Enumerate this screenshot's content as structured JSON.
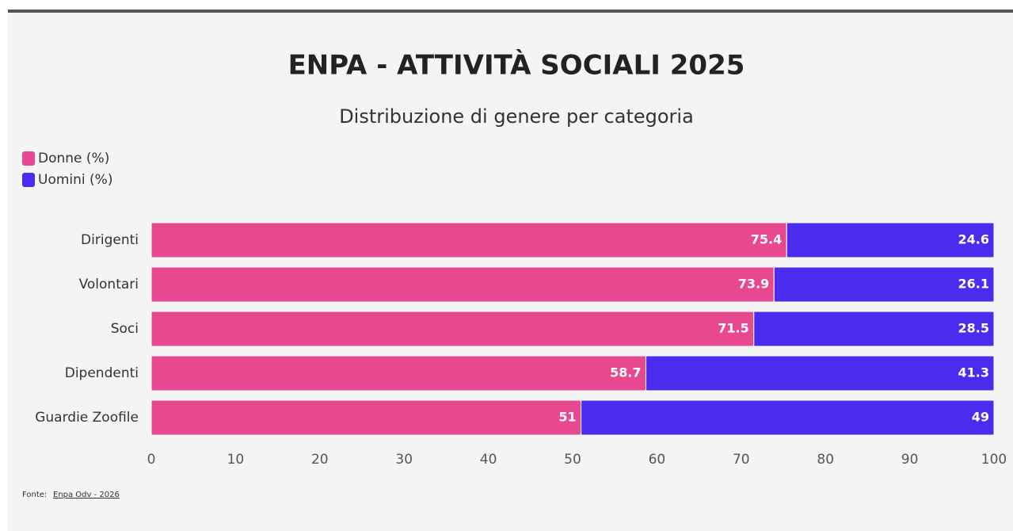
{
  "chart_data": {
    "type": "bar",
    "orientation": "horizontal",
    "stacked": true,
    "title": "ENPA - ATTIVITÀ SOCIALI 2025",
    "subtitle": "Distribuzione di genere per categoria",
    "categories": [
      "Dirigenti",
      "Volontari",
      "Soci",
      "Dipendenti",
      "Guardie Zoofile"
    ],
    "series": [
      {
        "name": "Donne (%)",
        "color": "#e8488f",
        "values": [
          75.4,
          73.9,
          71.5,
          58.7,
          51
        ]
      },
      {
        "name": "Uomini (%)",
        "color": "#4a2cee",
        "values": [
          24.6,
          26.1,
          28.5,
          41.3,
          49
        ]
      }
    ],
    "xlim": [
      0,
      100
    ],
    "xticks": [
      0,
      10,
      20,
      30,
      40,
      50,
      60,
      70,
      80,
      90,
      100
    ],
    "grid": false,
    "legend": "top-left",
    "source": {
      "label": "Fonte:",
      "link": "Enpa Odv - 2026"
    }
  }
}
